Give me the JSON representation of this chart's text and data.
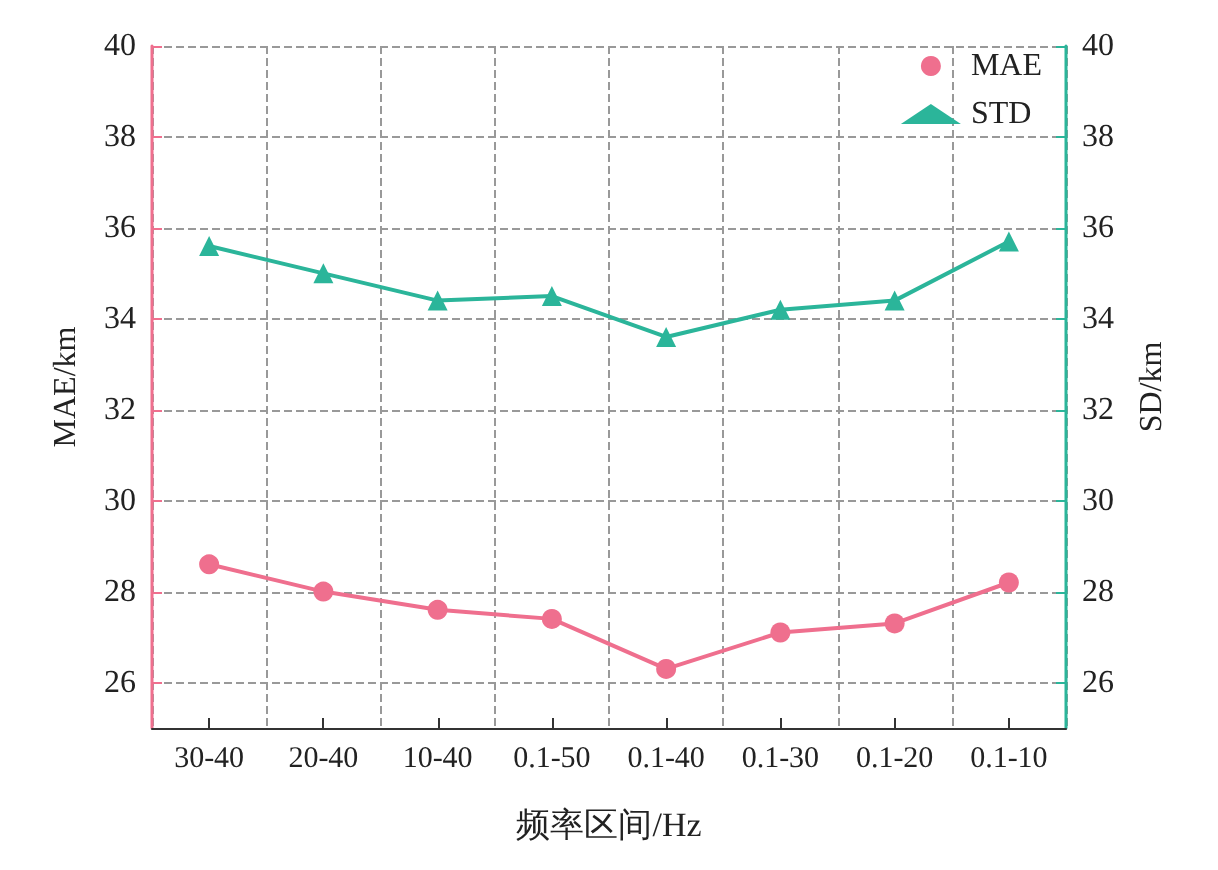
{
  "chart_data": {
    "type": "line",
    "xlabel": "频率区间/Hz",
    "ylabel": "MAE/km",
    "y2label": "SD/km",
    "categories": [
      "30-40",
      "20-40",
      "10-40",
      "0.1-50",
      "0.1-40",
      "0.1-30",
      "0.1-20",
      "0.1-10"
    ],
    "series": [
      {
        "name": "MAE",
        "color": "#ef6f8e",
        "marker": "circle",
        "values": [
          28.6,
          28.0,
          27.6,
          27.4,
          26.3,
          27.1,
          27.3,
          28.2
        ]
      },
      {
        "name": "STD",
        "color": "#2bb59a",
        "marker": "triangle",
        "axis": "y2",
        "values": [
          35.6,
          35.0,
          34.4,
          34.5,
          33.6,
          34.2,
          34.4,
          35.7
        ]
      }
    ],
    "ylim": [
      25,
      40
    ],
    "yticks": [
      26,
      28,
      30,
      32,
      34,
      36,
      38,
      40
    ],
    "y2lim": [
      25,
      40
    ],
    "y2ticks": [
      26,
      28,
      30,
      32,
      34,
      36,
      38,
      40
    ],
    "grid": true,
    "legend": "top right",
    "line_style": "solid"
  }
}
